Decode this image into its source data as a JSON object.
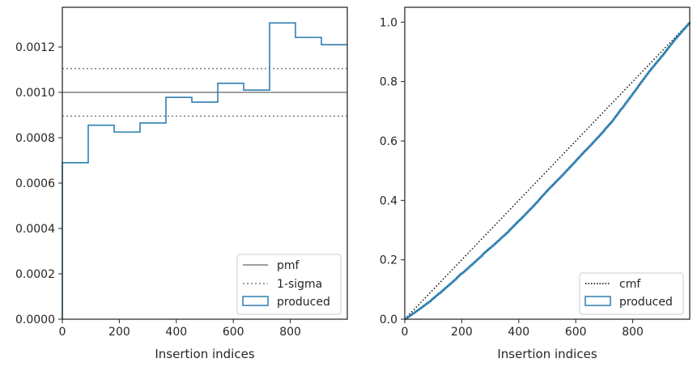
{
  "colors": {
    "produced": "#2f7fb0",
    "pmf": "#7f7f7f",
    "sigma": "#7f7f7f",
    "cmf": "#000000",
    "axes": "#262626",
    "legend_border": "#cccccc"
  },
  "chart_data": [
    {
      "type": "histogram-step",
      "xlabel": "Insertion indices",
      "ylabel": "",
      "xlim": [
        0,
        1000
      ],
      "ylim": [
        0,
        0.001375
      ],
      "xticks": [
        0,
        200,
        400,
        600,
        800
      ],
      "xtick_labels": [
        "0",
        "200",
        "400",
        "600",
        "800"
      ],
      "yticks": [
        0,
        0.0002,
        0.0004,
        0.0006,
        0.0008,
        0.001,
        0.0012
      ],
      "ytick_labels": [
        "0.0000",
        "0.0002",
        "0.0004",
        "0.0006",
        "0.0008",
        "0.0010",
        "0.0012"
      ],
      "bin_edges": [
        0,
        90.9,
        181.8,
        272.7,
        363.6,
        454.5,
        545.5,
        636.4,
        727.3,
        818.2,
        909.1,
        1000
      ],
      "values": [
        0.00069,
        0.000855,
        0.000825,
        0.000865,
        0.000978,
        0.000957,
        0.00104,
        0.00101,
        0.001306,
        0.001242,
        0.00121
      ],
      "pmf": 0.001,
      "sigma": [
        0.000895,
        0.001105
      ],
      "legend": {
        "position": "lower-right",
        "entries": [
          {
            "label": "pmf",
            "style": "solid-line"
          },
          {
            "label": "1-sigma",
            "style": "dotted-line"
          },
          {
            "label": "produced",
            "style": "box"
          }
        ]
      }
    },
    {
      "type": "line",
      "xlabel": "Insertion indices",
      "ylabel": "",
      "xlim": [
        0,
        1000
      ],
      "ylim": [
        0,
        1.05
      ],
      "xticks": [
        0,
        200,
        400,
        600,
        800
      ],
      "xtick_labels": [
        "0",
        "200",
        "400",
        "600",
        "800"
      ],
      "yticks": [
        0,
        0.2,
        0.4,
        0.6,
        0.8,
        1.0
      ],
      "ytick_labels": [
        "0.0",
        "0.2",
        "0.4",
        "0.6",
        "0.8",
        "1.0"
      ],
      "series": [
        {
          "name": "cmf",
          "style": "dotted",
          "x": [
            0,
            1000
          ],
          "y": [
            0,
            1.0
          ]
        },
        {
          "name": "produced",
          "style": "step",
          "x": [
            0,
            40,
            91,
            120,
            182,
            200,
            273,
            300,
            364,
            400,
            455,
            500,
            545,
            600,
            636,
            700,
            727,
            760,
            818,
            860,
            909,
            950,
            1000
          ],
          "y": [
            0,
            0.027,
            0.063,
            0.087,
            0.139,
            0.155,
            0.218,
            0.241,
            0.297,
            0.332,
            0.386,
            0.434,
            0.478,
            0.534,
            0.571,
            0.637,
            0.666,
            0.709,
            0.784,
            0.838,
            0.895,
            0.945,
            1.0
          ]
        }
      ],
      "legend": {
        "position": "lower-right",
        "entries": [
          {
            "label": "cmf",
            "style": "dotted-line"
          },
          {
            "label": "produced",
            "style": "box"
          }
        ]
      }
    }
  ]
}
